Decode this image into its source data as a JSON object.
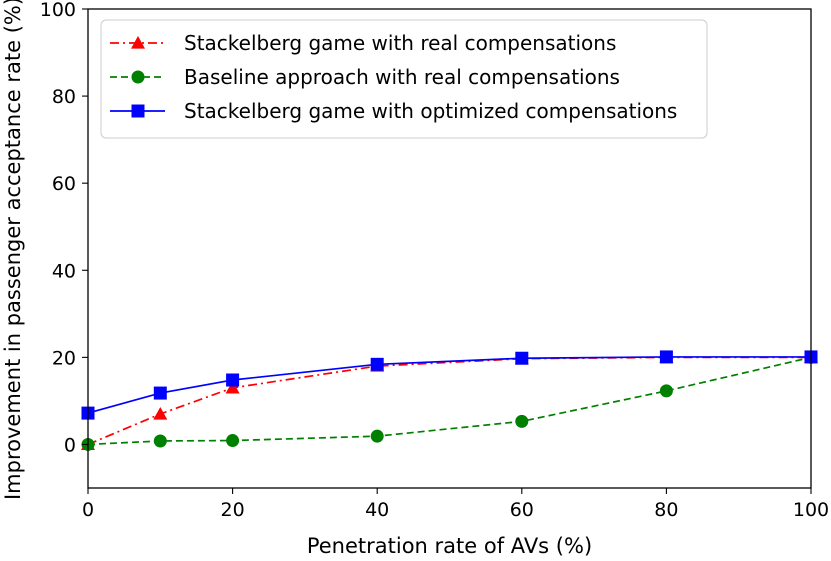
{
  "chart_data": {
    "type": "line",
    "title": "",
    "xlabel": "Penetration rate of AVs (%)",
    "ylabel": "Improvement in passenger acceptance rate (%)",
    "xlim": [
      0,
      100
    ],
    "ylim": [
      -10,
      100
    ],
    "xticks": [
      0,
      20,
      40,
      60,
      80,
      100
    ],
    "yticks": [
      0,
      20,
      40,
      60,
      80,
      100
    ],
    "grid": false,
    "legend_position": "top-left",
    "series": [
      {
        "name": "Stackelberg game with real compensations",
        "color": "#ff0000",
        "marker": "triangle",
        "linestyle": "dashdot",
        "x": [
          0,
          10,
          20,
          40,
          60,
          80,
          100
        ],
        "values": [
          0,
          7,
          13,
          18,
          19.7,
          20,
          20
        ]
      },
      {
        "name": "Baseline approach with real compensations",
        "color": "#008000",
        "marker": "circle",
        "linestyle": "dashed",
        "x": [
          0,
          10,
          20,
          40,
          60,
          80,
          100
        ],
        "values": [
          0,
          0.8,
          0.9,
          1.9,
          5.3,
          12.3,
          20
        ]
      },
      {
        "name": "Stackelberg game with optimized compensations",
        "color": "#0000ff",
        "marker": "square",
        "linestyle": "solid",
        "x": [
          0,
          10,
          20,
          40,
          60,
          80,
          100
        ],
        "values": [
          7.2,
          11.8,
          14.8,
          18.4,
          19.8,
          20.1,
          20.1
        ]
      }
    ]
  }
}
